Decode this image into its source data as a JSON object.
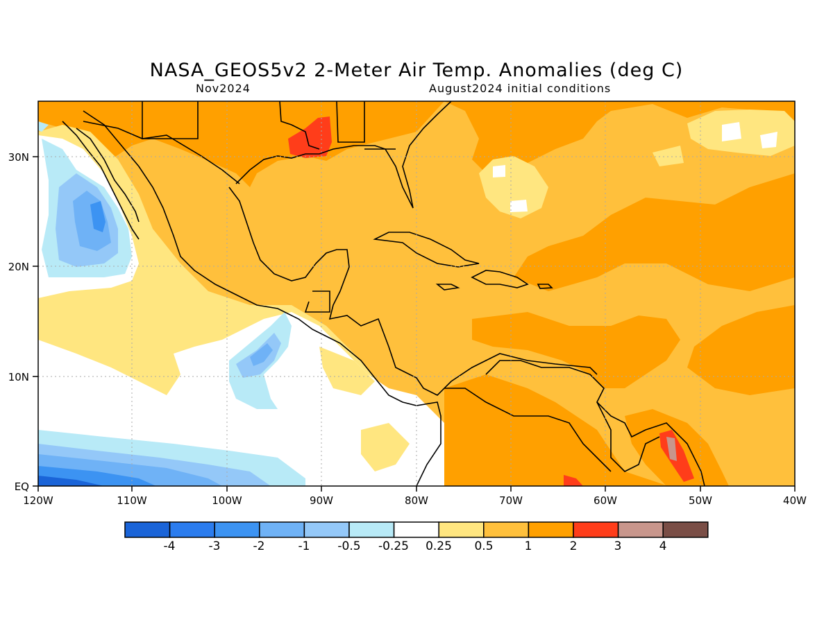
{
  "title": "NASA_GEOS5v2 2-Meter Air Temp. Anomalies (deg C)",
  "forecast_month": "Nov2024",
  "init_conditions": "August2024 initial conditions",
  "map": {
    "lon_labels": [
      "120W",
      "110W",
      "100W",
      "90W",
      "80W",
      "70W",
      "60W",
      "50W",
      "40W"
    ],
    "lat_labels": [
      "EQ",
      "10N",
      "20N",
      "30N"
    ],
    "lon_range_deg": [
      -120,
      -40
    ],
    "lat_range_deg": [
      0,
      35
    ],
    "grid": "dotted"
  },
  "colorbar": {
    "labels": [
      "-4",
      "-3",
      "-2",
      "-1",
      "-0.5",
      "-0.25",
      "0.25",
      "0.5",
      "1",
      "2",
      "3",
      "4"
    ],
    "colors": [
      "#1a64d8",
      "#2b7cee",
      "#3c93f2",
      "#6fb2f6",
      "#94c8f8",
      "#b8eaf7",
      "#ffffff",
      "#ffe680",
      "#ffc03c",
      "#ffa000",
      "#ff3d1a",
      "#c8968c",
      "#7a4e46"
    ]
  }
}
